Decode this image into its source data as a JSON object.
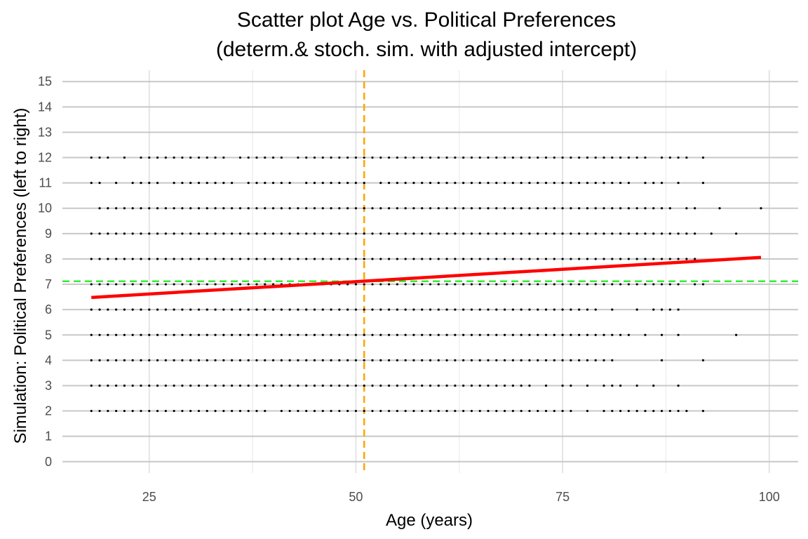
{
  "chart_data": {
    "type": "scatter",
    "title_line1": "Scatter plot Age vs. Political Preferences",
    "title_line2": "(determ.& stoch. sim. with adjusted intercept)",
    "xlabel": "Age (years)",
    "ylabel": "Simulation: Political Preferences (left to right)",
    "xlim": [
      14.5,
      103.5
    ],
    "ylim": [
      -0.45,
      15.45
    ],
    "x_ticks": [
      25,
      50,
      75,
      100
    ],
    "y_ticks": [
      0,
      1,
      2,
      3,
      4,
      5,
      6,
      7,
      8,
      9,
      10,
      11,
      12,
      13,
      14,
      15
    ],
    "grid": true,
    "series": [
      {
        "y": 12,
        "x": [
          18,
          19,
          20,
          22,
          24,
          25,
          26,
          27,
          28,
          29,
          30,
          31,
          32,
          33,
          34,
          36,
          37,
          38,
          39,
          40,
          41,
          43,
          44,
          45,
          46,
          47,
          48,
          49,
          50,
          51,
          52,
          53,
          54,
          55,
          56,
          57,
          58,
          59,
          60,
          61,
          62,
          63,
          64,
          65,
          66,
          67,
          68,
          69,
          70,
          71,
          72,
          73,
          74,
          75,
          76,
          77,
          78,
          79,
          80,
          81,
          82,
          83,
          84,
          85,
          87,
          88,
          89,
          90,
          92
        ]
      },
      {
        "y": 11,
        "x": [
          18,
          19,
          21,
          23,
          24,
          25,
          26,
          28,
          29,
          30,
          31,
          32,
          33,
          34,
          35,
          37,
          38,
          39,
          40,
          41,
          42,
          44,
          45,
          46,
          47,
          48,
          49,
          50,
          51,
          53,
          54,
          55,
          56,
          57,
          58,
          59,
          60,
          61,
          62,
          63,
          64,
          65,
          66,
          67,
          68,
          69,
          70,
          71,
          72,
          73,
          74,
          75,
          76,
          77,
          78,
          79,
          80,
          81,
          82,
          83,
          85,
          86,
          87,
          89,
          92
        ]
      },
      {
        "y": 10,
        "x": [
          19,
          20,
          21,
          22,
          23,
          24,
          25,
          26,
          27,
          28,
          29,
          30,
          31,
          32,
          33,
          34,
          35,
          36,
          37,
          38,
          39,
          40,
          41,
          42,
          43,
          44,
          45,
          46,
          47,
          48,
          49,
          50,
          51,
          52,
          53,
          54,
          55,
          56,
          57,
          58,
          59,
          60,
          61,
          62,
          63,
          64,
          65,
          66,
          67,
          68,
          69,
          70,
          71,
          72,
          73,
          74,
          75,
          76,
          77,
          78,
          79,
          80,
          81,
          82,
          83,
          84,
          85,
          86,
          87,
          88,
          90,
          91,
          94,
          99
        ]
      },
      {
        "y": 9,
        "x": [
          18,
          19,
          20,
          21,
          22,
          23,
          24,
          25,
          26,
          27,
          28,
          29,
          30,
          31,
          32,
          33,
          34,
          35,
          36,
          37,
          38,
          39,
          40,
          41,
          42,
          43,
          44,
          45,
          46,
          47,
          48,
          49,
          50,
          51,
          52,
          53,
          54,
          55,
          56,
          57,
          58,
          59,
          60,
          61,
          62,
          63,
          64,
          65,
          66,
          67,
          68,
          69,
          70,
          71,
          72,
          73,
          74,
          75,
          76,
          77,
          78,
          79,
          80,
          81,
          82,
          83,
          84,
          85,
          86,
          87,
          88,
          89,
          90,
          91,
          93,
          96
        ]
      },
      {
        "y": 8,
        "x": [
          18,
          19,
          20,
          21,
          22,
          23,
          24,
          25,
          26,
          27,
          28,
          29,
          30,
          31,
          32,
          33,
          34,
          35,
          36,
          37,
          38,
          39,
          40,
          41,
          42,
          43,
          44,
          45,
          46,
          47,
          48,
          49,
          50,
          51,
          52,
          53,
          54,
          55,
          56,
          57,
          58,
          59,
          60,
          61,
          62,
          63,
          64,
          65,
          66,
          67,
          68,
          69,
          70,
          71,
          72,
          73,
          74,
          75,
          76,
          77,
          78,
          79,
          80,
          81,
          82,
          83,
          84,
          85,
          86,
          87,
          88,
          89,
          90,
          91
        ]
      },
      {
        "y": 7,
        "x": [
          18,
          19,
          20,
          21,
          22,
          23,
          24,
          25,
          26,
          27,
          28,
          29,
          30,
          31,
          32,
          33,
          34,
          35,
          36,
          37,
          38,
          39,
          40,
          41,
          42,
          43,
          44,
          45,
          46,
          47,
          48,
          49,
          50,
          51,
          52,
          53,
          54,
          55,
          56,
          57,
          58,
          59,
          60,
          61,
          62,
          63,
          64,
          65,
          66,
          67,
          68,
          69,
          70,
          71,
          72,
          73,
          74,
          75,
          76,
          77,
          78,
          79,
          80,
          81,
          82,
          83,
          84,
          85,
          86,
          87,
          88,
          89,
          91,
          92
        ]
      },
      {
        "y": 6,
        "x": [
          18,
          19,
          20,
          21,
          22,
          23,
          24,
          25,
          26,
          27,
          28,
          29,
          30,
          31,
          32,
          33,
          34,
          35,
          36,
          37,
          38,
          39,
          40,
          41,
          42,
          43,
          44,
          45,
          46,
          47,
          48,
          49,
          50,
          51,
          52,
          53,
          54,
          55,
          56,
          57,
          58,
          59,
          60,
          61,
          62,
          63,
          64,
          65,
          66,
          67,
          68,
          69,
          70,
          71,
          72,
          73,
          74,
          75,
          76,
          77,
          78,
          79,
          81,
          84,
          86,
          87,
          88,
          89
        ]
      },
      {
        "y": 5,
        "x": [
          18,
          19,
          20,
          21,
          22,
          23,
          24,
          25,
          26,
          27,
          28,
          29,
          30,
          31,
          32,
          33,
          34,
          35,
          36,
          37,
          38,
          39,
          40,
          41,
          42,
          43,
          44,
          45,
          46,
          47,
          48,
          49,
          50,
          51,
          52,
          53,
          54,
          55,
          56,
          57,
          58,
          59,
          60,
          61,
          62,
          63,
          64,
          65,
          66,
          67,
          68,
          69,
          70,
          71,
          72,
          73,
          74,
          75,
          76,
          77,
          78,
          79,
          80,
          81,
          82,
          83,
          85,
          87,
          89,
          96
        ]
      },
      {
        "y": 4,
        "x": [
          18,
          19,
          20,
          21,
          22,
          23,
          24,
          25,
          26,
          27,
          28,
          29,
          30,
          31,
          32,
          33,
          34,
          35,
          36,
          37,
          38,
          39,
          40,
          41,
          42,
          43,
          44,
          45,
          46,
          47,
          48,
          49,
          50,
          51,
          52,
          53,
          54,
          55,
          56,
          57,
          58,
          59,
          60,
          61,
          62,
          63,
          64,
          65,
          66,
          67,
          68,
          69,
          70,
          71,
          72,
          73,
          74,
          75,
          76,
          77,
          78,
          79,
          80,
          81,
          87,
          92
        ]
      },
      {
        "y": 3,
        "x": [
          18,
          19,
          20,
          21,
          22,
          23,
          24,
          25,
          26,
          27,
          28,
          29,
          30,
          31,
          32,
          33,
          34,
          35,
          36,
          37,
          38,
          39,
          40,
          41,
          42,
          43,
          44,
          45,
          46,
          47,
          48,
          49,
          50,
          51,
          52,
          53,
          54,
          55,
          56,
          57,
          58,
          59,
          60,
          61,
          62,
          63,
          64,
          65,
          66,
          67,
          68,
          69,
          70,
          71,
          73,
          75,
          76,
          78,
          80,
          81,
          82,
          84,
          86,
          89
        ]
      },
      {
        "y": 2,
        "x": [
          18,
          19,
          20,
          21,
          22,
          23,
          24,
          25,
          26,
          27,
          28,
          29,
          30,
          31,
          32,
          33,
          34,
          35,
          36,
          37,
          38,
          39,
          41,
          42,
          43,
          44,
          45,
          46,
          47,
          48,
          49,
          50,
          51,
          52,
          53,
          54,
          55,
          56,
          57,
          58,
          59,
          60,
          61,
          62,
          63,
          64,
          65,
          66,
          67,
          68,
          69,
          70,
          71,
          72,
          73,
          74,
          75,
          76,
          78,
          80,
          81,
          82,
          83,
          84,
          85,
          86,
          87,
          88,
          89,
          90,
          92
        ]
      }
    ],
    "regression_line": {
      "x": [
        18,
        99
      ],
      "y": [
        6.48,
        8.06
      ],
      "color": "#ff0000"
    },
    "mean_x_line": {
      "x": 51,
      "color": "#ffa500"
    },
    "mean_y_line": {
      "y": 7.12,
      "color": "#33ee33"
    }
  }
}
